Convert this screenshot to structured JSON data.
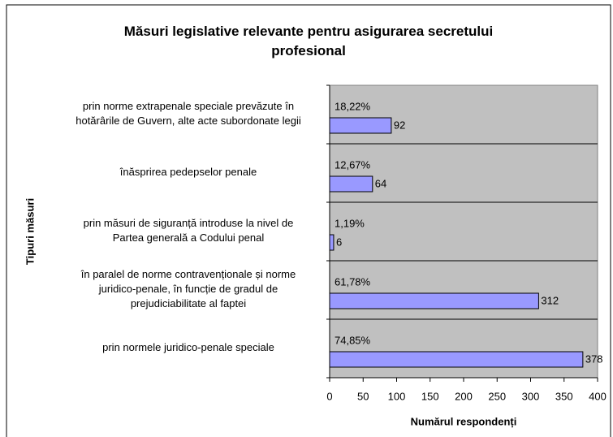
{
  "chart_data": {
    "type": "bar",
    "orientation": "horizontal",
    "title": "Măsuri legislative relevante pentru asigurarea secretului profesional",
    "xlabel": "Numărul respondenți",
    "ylabel": "Tipuri măsuri",
    "categories": [
      "prin norme extrapenale speciale prevăzute în hotărârile de Guvern, alte acte subordonate legii",
      "înăsprirea pedepselor penale",
      "prin măsuri de siguranță introduse la nivel de Partea generală a Codului penal",
      "în paralel de norme contravenționale și norme juridico-penale, în funcție de gradul de prejudiciabilitate al faptei",
      "prin normele juridico-penale speciale"
    ],
    "values": [
      92,
      64,
      6,
      312,
      378
    ],
    "percent_labels": [
      "18,22%",
      "12,67%",
      "1,19%",
      "61,78%",
      "74,85%"
    ],
    "color": "#9999ff",
    "xlim": [
      0,
      400
    ],
    "xticks": [
      0,
      50,
      100,
      150,
      200,
      250,
      300,
      350,
      400
    ]
  }
}
